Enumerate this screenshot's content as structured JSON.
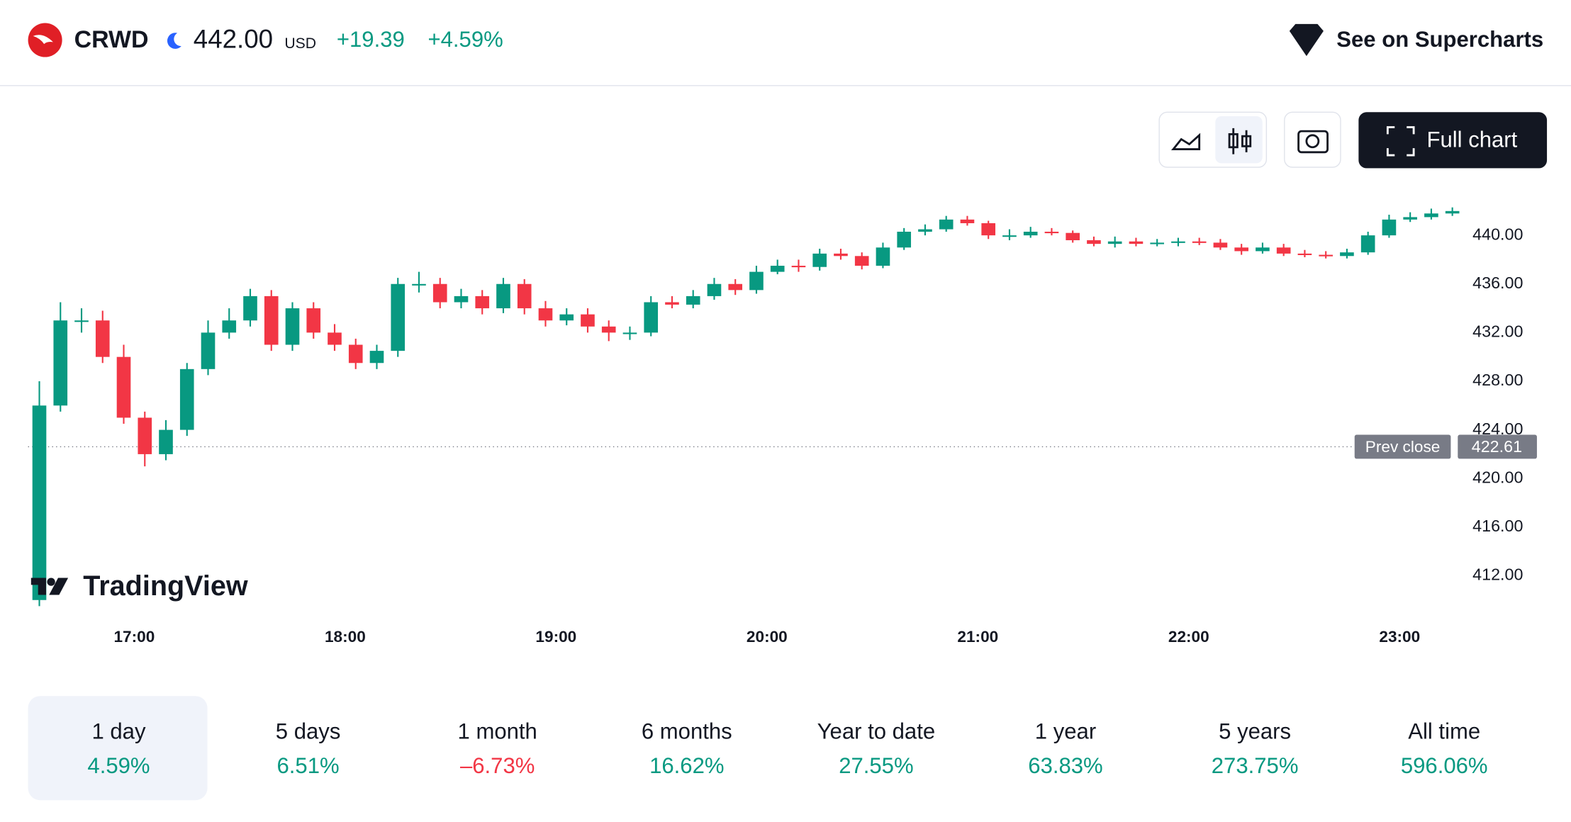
{
  "header": {
    "symbol": "CRWD",
    "price": "442.00",
    "currency": "USD",
    "change": "+19.39",
    "change_percent": "+4.59%",
    "link": "See on Supercharts"
  },
  "toolbar": {
    "full_chart": "Full chart"
  },
  "brand": "TradingView",
  "chart_data": {
    "type": "candlestick",
    "up_color": "#089981",
    "down_color": "#f23645",
    "x": [
      "16:30",
      "16:36",
      "16:42",
      "16:48",
      "16:54",
      "17:00",
      "17:06",
      "17:12",
      "17:18",
      "17:24",
      "17:30",
      "17:36",
      "17:42",
      "17:48",
      "17:54",
      "18:00",
      "18:06",
      "18:12",
      "18:18",
      "18:24",
      "18:30",
      "18:36",
      "18:42",
      "18:48",
      "18:54",
      "19:00",
      "19:06",
      "19:12",
      "19:18",
      "19:24",
      "19:30",
      "19:36",
      "19:42",
      "19:48",
      "19:54",
      "20:00",
      "20:06",
      "20:12",
      "20:18",
      "20:24",
      "20:30",
      "20:36",
      "20:42",
      "20:48",
      "20:54",
      "21:00",
      "21:06",
      "21:12",
      "21:18",
      "21:24",
      "21:30",
      "21:36",
      "21:42",
      "21:48",
      "21:54",
      "22:00",
      "22:06",
      "22:12",
      "22:18",
      "22:24",
      "22:30",
      "22:36",
      "22:42",
      "22:48",
      "22:54",
      "23:00",
      "23:06",
      "23:12"
    ],
    "open": [
      410,
      426,
      433,
      433,
      430,
      425,
      422,
      424,
      429,
      432,
      433,
      435,
      431,
      434,
      432,
      431,
      429.5,
      430.5,
      436,
      436,
      434.5,
      435,
      434,
      436,
      434,
      433,
      433.5,
      432.5,
      432,
      432,
      434.5,
      434.3,
      435,
      436,
      435.5,
      437,
      437.5,
      437.4,
      438.5,
      438.3,
      437.5,
      439,
      440.3,
      440.5,
      441.3,
      441,
      440,
      440,
      440.3,
      440.2,
      439.6,
      439.3,
      439.5,
      439.3,
      439.4,
      439.5,
      439.4,
      439,
      438.7,
      439,
      438.5,
      438.4,
      438.3,
      438.6,
      440,
      441.3,
      441.5,
      441.8
    ],
    "high": [
      428,
      434.5,
      434,
      433.8,
      431,
      425.5,
      424.8,
      429.5,
      433,
      434,
      435.6,
      435.5,
      434.5,
      434.5,
      432.7,
      431.5,
      431,
      436.5,
      437,
      436.5,
      435.6,
      435.5,
      436.5,
      436.4,
      434.6,
      434,
      434,
      433,
      432.5,
      435,
      435,
      435.5,
      436.5,
      436.4,
      437.5,
      438,
      438,
      438.9,
      438.9,
      438.6,
      439.4,
      440.6,
      440.9,
      441.6,
      441.6,
      441.2,
      440.5,
      440.7,
      440.6,
      440.4,
      439.9,
      439.9,
      439.8,
      439.7,
      439.8,
      439.8,
      439.7,
      439.3,
      439.4,
      439.3,
      438.8,
      438.7,
      438.9,
      440.3,
      441.7,
      441.9,
      442.2,
      442.3
    ],
    "low": [
      409.5,
      425.5,
      432,
      429.5,
      424.5,
      421,
      421.5,
      423.5,
      428.5,
      431.5,
      432.5,
      430.5,
      430.5,
      431.5,
      430.5,
      429,
      429,
      430,
      435.3,
      434,
      434,
      433.5,
      433.6,
      433.5,
      432.5,
      432.6,
      432,
      431.3,
      431.4,
      431.7,
      434,
      434,
      434.7,
      435.1,
      435.2,
      436.8,
      437,
      437.1,
      438,
      437.2,
      437.3,
      438.8,
      440,
      440.3,
      440.8,
      439.7,
      439.6,
      439.8,
      440,
      439.4,
      439.1,
      439,
      439.1,
      439.1,
      439.1,
      439.2,
      438.8,
      438.4,
      438.5,
      438.3,
      438.2,
      438.1,
      438.1,
      438.4,
      439.8,
      441.1,
      441.3,
      441.6
    ],
    "close": [
      426,
      433,
      433,
      430,
      425,
      422,
      424,
      429,
      432,
      433,
      435,
      431,
      434,
      432,
      431,
      429.5,
      430.5,
      436,
      436,
      434.5,
      435,
      434,
      436,
      434,
      433,
      433.5,
      432.5,
      432,
      432,
      434.5,
      434.3,
      435,
      436,
      435.5,
      437,
      437.5,
      437.4,
      438.5,
      438.3,
      437.5,
      439,
      440.3,
      440.5,
      441.3,
      441,
      440,
      440,
      440.3,
      440.2,
      439.6,
      439.3,
      439.5,
      439.3,
      439.4,
      439.5,
      439.4,
      439,
      438.7,
      439,
      438.5,
      438.4,
      438.3,
      438.6,
      440,
      441.3,
      441.5,
      441.8,
      442
    ],
    "xlim": [
      "16:30",
      "23:15"
    ],
    "xticks": [
      "17:00",
      "18:00",
      "19:00",
      "20:00",
      "21:00",
      "22:00",
      "23:00"
    ],
    "ylim": [
      409,
      443
    ],
    "yticks": [
      {
        "value": 412,
        "label": "412.00"
      },
      {
        "value": 416,
        "label": "416.00"
      },
      {
        "value": 420,
        "label": "420.00"
      },
      {
        "value": 424,
        "label": "424.00"
      },
      {
        "value": 428,
        "label": "428.00"
      },
      {
        "value": 432,
        "label": "432.00"
      },
      {
        "value": 436,
        "label": "436.00"
      },
      {
        "value": 440,
        "label": "440.00"
      }
    ],
    "prev_close": {
      "label": "Prev close",
      "value": 422.61
    }
  },
  "periods": [
    {
      "label": "1 day",
      "change": "4.59%",
      "color": "#089981",
      "selected": true
    },
    {
      "label": "5 days",
      "change": "6.51%",
      "color": "#089981",
      "selected": false
    },
    {
      "label": "1 month",
      "change": "–6.73%",
      "color": "#f23645",
      "selected": false
    },
    {
      "label": "6 months",
      "change": "16.62%",
      "color": "#089981",
      "selected": false
    },
    {
      "label": "Year to date",
      "change": "27.55%",
      "color": "#089981",
      "selected": false
    },
    {
      "label": "1 year",
      "change": "63.83%",
      "color": "#089981",
      "selected": false
    },
    {
      "label": "5 years",
      "change": "273.75%",
      "color": "#089981",
      "selected": false
    },
    {
      "label": "All time",
      "change": "596.06%",
      "color": "#089981",
      "selected": false
    }
  ]
}
